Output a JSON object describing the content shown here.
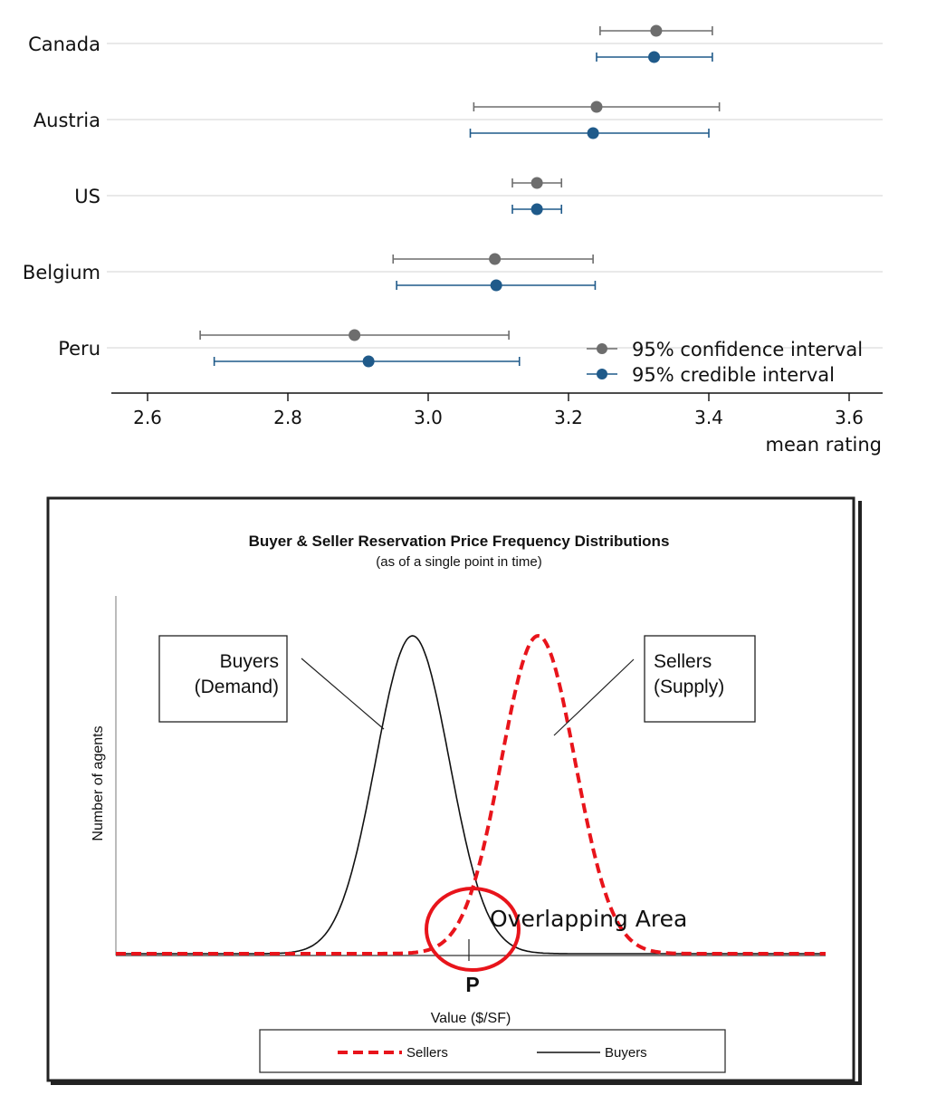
{
  "chart_data": [
    {
      "type": "scatter",
      "variant": "forest-plot",
      "xlabel": "mean rating",
      "xlim": [
        2.55,
        3.65
      ],
      "xticks": [
        "2.6",
        "2.8",
        "3.0",
        "3.2",
        "3.4",
        "3.6"
      ],
      "categories": [
        "Canada",
        "Austria",
        "US",
        "Belgium",
        "Peru"
      ],
      "grid": "horizontal",
      "legend_position": "bottom-right",
      "series": [
        {
          "name": "95% confidence interval",
          "color": "#6d6d6d",
          "points": [
            {
              "category": "Canada",
              "mean": 3.325,
              "low": 3.245,
              "high": 3.405
            },
            {
              "category": "Austria",
              "mean": 3.24,
              "low": 3.065,
              "high": 3.415
            },
            {
              "category": "US",
              "mean": 3.155,
              "low": 3.12,
              "high": 3.19
            },
            {
              "category": "Belgium",
              "mean": 3.095,
              "low": 2.95,
              "high": 3.235
            },
            {
              "category": "Peru",
              "mean": 2.895,
              "low": 2.675,
              "high": 3.115
            }
          ]
        },
        {
          "name": "95% credible interval",
          "color": "#1f5a8a",
          "points": [
            {
              "category": "Canada",
              "mean": 3.322,
              "low": 3.24,
              "high": 3.405
            },
            {
              "category": "Austria",
              "mean": 3.235,
              "low": 3.06,
              "high": 3.4
            },
            {
              "category": "US",
              "mean": 3.155,
              "low": 3.12,
              "high": 3.19
            },
            {
              "category": "Belgium",
              "mean": 3.097,
              "low": 2.955,
              "high": 3.238
            },
            {
              "category": "Peru",
              "mean": 2.915,
              "low": 2.695,
              "high": 3.13
            }
          ]
        }
      ]
    },
    {
      "type": "line",
      "title": "Buyer & Seller Reservation Price Frequency Distributions",
      "subtitle": "(as of a single point in time)",
      "xlabel": "Value ($/SF)",
      "ylabel": "Number of agents",
      "grid": false,
      "legend_position": "bottom",
      "series": [
        {
          "name": "Sellers",
          "color": "#e8141b",
          "style": "dashed",
          "shape": "normal",
          "mean": 0.595,
          "sd": 0.052,
          "peak": 1.0
        },
        {
          "name": "Buyers",
          "color": "#111111",
          "style": "solid",
          "shape": "normal",
          "mean": 0.418,
          "sd": 0.052,
          "peak": 1.0
        }
      ],
      "annotations": {
        "buyers_box_line1": "Buyers",
        "buyers_box_line2": "(Demand)",
        "sellers_box_line1": "Sellers",
        "sellers_box_line2": "(Supply)",
        "overlap": "Overlapping Area",
        "price_marker": "P",
        "overlap_circle_color": "#e8141b"
      }
    }
  ]
}
